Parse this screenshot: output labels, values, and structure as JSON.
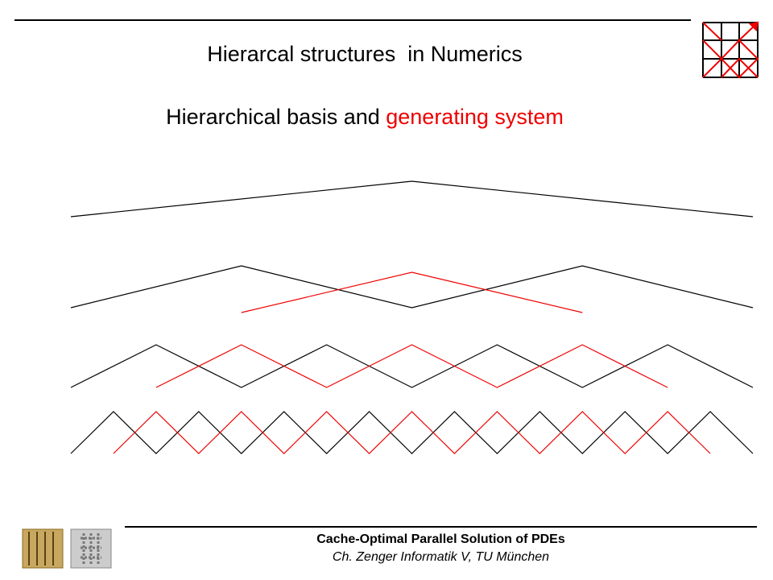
{
  "header": {
    "title": "Hierarcal structures  in Numerics"
  },
  "subtitle": {
    "black": "Hierarchical basis and ",
    "red": "generating system"
  },
  "footer": {
    "line1": "Cache-Optimal Parallel Solution of PDEs",
    "line2": "Ch. Zenger Informatik V, TU München"
  }
}
